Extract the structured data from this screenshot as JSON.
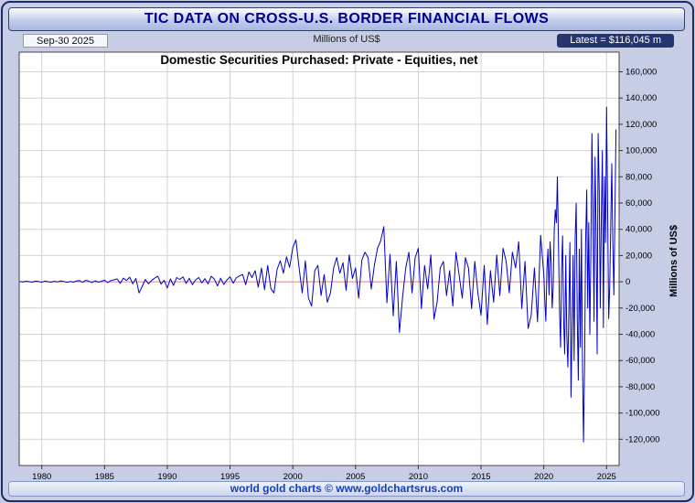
{
  "header": {
    "title": "TIC DATA ON CROSS-U.S. BORDER FINANCIAL FLOWS"
  },
  "info_bar": {
    "date": "Sep-30  2025",
    "units": "Millions of US$",
    "latest": "Latest = $116,045 m"
  },
  "footer": {
    "text": "world gold charts © www.goldchartsrus.com"
  },
  "colors": {
    "background": "#c6cde4",
    "frame_border": "#1b2a6b",
    "title_text": "#00008b",
    "badge_bg": "#25356f",
    "footer_text": "#1b3fae"
  },
  "chart_data": {
    "type": "line",
    "title": "Domestic Securities Purchased: Private - Equities, net",
    "ylabel": "Millions of US$",
    "xlabel": "",
    "grid": true,
    "legend_position": "none",
    "xlim": [
      1978.2,
      2026.0
    ],
    "ylim": [
      -140000,
      175000
    ],
    "xticks": [
      1980,
      1985,
      1990,
      1995,
      2000,
      2005,
      2010,
      2015,
      2020,
      2025
    ],
    "yticks": [
      -120000,
      -100000,
      -80000,
      -60000,
      -40000,
      -20000,
      0,
      20000,
      40000,
      60000,
      80000,
      100000,
      120000,
      140000,
      160000
    ],
    "line_color": "#0000c8",
    "zero_line_color": "#d98080",
    "grid_color": "#d2d2d2",
    "latest_value": 116045,
    "latest_date": "Sep-30 2025",
    "series": [
      {
        "name": "Private Equities net purchases",
        "points": [
          [
            1978.25,
            300
          ],
          [
            1978.5,
            -200
          ],
          [
            1978.75,
            400
          ],
          [
            1979,
            100
          ],
          [
            1979.25,
            -300
          ],
          [
            1979.5,
            500
          ],
          [
            1979.75,
            200
          ],
          [
            1980,
            -400
          ],
          [
            1980.25,
            600
          ],
          [
            1980.5,
            100
          ],
          [
            1980.75,
            -250
          ],
          [
            1981,
            450
          ],
          [
            1981.25,
            -150
          ],
          [
            1981.5,
            700
          ],
          [
            1981.75,
            300
          ],
          [
            1982,
            -500
          ],
          [
            1982.25,
            250
          ],
          [
            1982.5,
            -300
          ],
          [
            1982.75,
            600
          ],
          [
            1983,
            900
          ],
          [
            1983.25,
            -400
          ],
          [
            1983.5,
            1100
          ],
          [
            1983.75,
            500
          ],
          [
            1984,
            -700
          ],
          [
            1984.25,
            800
          ],
          [
            1984.5,
            -300
          ],
          [
            1984.75,
            400
          ],
          [
            1985,
            1200
          ],
          [
            1985.25,
            -600
          ],
          [
            1985.5,
            900
          ],
          [
            1985.75,
            1500
          ],
          [
            1986,
            2200
          ],
          [
            1986.25,
            -1200
          ],
          [
            1986.5,
            2800
          ],
          [
            1986.75,
            1000
          ],
          [
            1987,
            3500
          ],
          [
            1987.25,
            -1500
          ],
          [
            1987.5,
            2500
          ],
          [
            1987.75,
            -8500
          ],
          [
            1988,
            -3500
          ],
          [
            1988.25,
            1800
          ],
          [
            1988.5,
            -1500
          ],
          [
            1988.75,
            1000
          ],
          [
            1989,
            2800
          ],
          [
            1989.25,
            4200
          ],
          [
            1989.5,
            -1800
          ],
          [
            1989.75,
            1200
          ],
          [
            1990,
            -4800
          ],
          [
            1990.25,
            2200
          ],
          [
            1990.5,
            -2800
          ],
          [
            1990.75,
            3200
          ],
          [
            1991,
            1800
          ],
          [
            1991.25,
            3800
          ],
          [
            1991.5,
            -1200
          ],
          [
            1991.75,
            2600
          ],
          [
            1992,
            -2200
          ],
          [
            1992.25,
            1400
          ],
          [
            1992.5,
            3200
          ],
          [
            1992.75,
            -900
          ],
          [
            1993,
            2400
          ],
          [
            1993.25,
            -1600
          ],
          [
            1993.5,
            4200
          ],
          [
            1993.75,
            2000
          ],
          [
            1994,
            -3200
          ],
          [
            1994.25,
            2700
          ],
          [
            1994.5,
            -2000
          ],
          [
            1994.75,
            1400
          ],
          [
            1995,
            3800
          ],
          [
            1995.25,
            -1100
          ],
          [
            1995.5,
            3000
          ],
          [
            1995.75,
            4500
          ],
          [
            1996,
            5500
          ],
          [
            1996.25,
            -2200
          ],
          [
            1996.5,
            7500
          ],
          [
            1996.75,
            3200
          ],
          [
            1997,
            8500
          ],
          [
            1997.25,
            -4200
          ],
          [
            1997.5,
            10500
          ],
          [
            1997.75,
            -6000
          ],
          [
            1998,
            12500
          ],
          [
            1998.25,
            -5200
          ],
          [
            1998.5,
            -8500
          ],
          [
            1998.75,
            9500
          ],
          [
            1999,
            16000
          ],
          [
            1999.25,
            6500
          ],
          [
            1999.5,
            19000
          ],
          [
            1999.75,
            11000
          ],
          [
            2000,
            26000
          ],
          [
            2000.25,
            32000
          ],
          [
            2000.5,
            11000
          ],
          [
            2000.75,
            -8500
          ],
          [
            2001,
            16000
          ],
          [
            2001.25,
            -12500
          ],
          [
            2001.5,
            -18500
          ],
          [
            2001.75,
            8500
          ],
          [
            2002,
            12500
          ],
          [
            2002.25,
            -10500
          ],
          [
            2002.5,
            5500
          ],
          [
            2002.75,
            -15500
          ],
          [
            2003,
            -8500
          ],
          [
            2003.25,
            10500
          ],
          [
            2003.5,
            18500
          ],
          [
            2003.75,
            6500
          ],
          [
            2004,
            14500
          ],
          [
            2004.25,
            -6500
          ],
          [
            2004.5,
            20500
          ],
          [
            2004.75,
            2500
          ],
          [
            2005,
            10500
          ],
          [
            2005.25,
            -12500
          ],
          [
            2005.5,
            16500
          ],
          [
            2005.75,
            22500
          ],
          [
            2006,
            18500
          ],
          [
            2006.25,
            -5500
          ],
          [
            2006.5,
            12500
          ],
          [
            2006.75,
            25500
          ],
          [
            2007,
            31000
          ],
          [
            2007.25,
            42000
          ],
          [
            2007.5,
            -16000
          ],
          [
            2007.75,
            21000
          ],
          [
            2008,
            -26000
          ],
          [
            2008.25,
            15500
          ],
          [
            2008.5,
            -38500
          ],
          [
            2008.75,
            -11000
          ],
          [
            2009,
            10500
          ],
          [
            2009.25,
            22500
          ],
          [
            2009.5,
            -8500
          ],
          [
            2009.75,
            18500
          ],
          [
            2010,
            25500
          ],
          [
            2010.25,
            -20500
          ],
          [
            2010.5,
            12500
          ],
          [
            2010.75,
            -5500
          ],
          [
            2011,
            20500
          ],
          [
            2011.25,
            -28500
          ],
          [
            2011.5,
            -15500
          ],
          [
            2011.75,
            10500
          ],
          [
            2012,
            15500
          ],
          [
            2012.25,
            -10500
          ],
          [
            2012.5,
            8500
          ],
          [
            2012.75,
            -18500
          ],
          [
            2013,
            22500
          ],
          [
            2013.25,
            5500
          ],
          [
            2013.5,
            -12500
          ],
          [
            2013.75,
            18500
          ],
          [
            2014,
            10500
          ],
          [
            2014.25,
            -20500
          ],
          [
            2014.5,
            15500
          ],
          [
            2014.75,
            -8500
          ],
          [
            2015,
            -25500
          ],
          [
            2015.25,
            12500
          ],
          [
            2015.5,
            -32500
          ],
          [
            2015.75,
            8500
          ],
          [
            2016,
            -15500
          ],
          [
            2016.25,
            20500
          ],
          [
            2016.5,
            -10500
          ],
          [
            2016.75,
            25500
          ],
          [
            2017,
            15500
          ],
          [
            2017.25,
            -8500
          ],
          [
            2017.5,
            22500
          ],
          [
            2017.75,
            10500
          ],
          [
            2018,
            30500
          ],
          [
            2018.25,
            -20500
          ],
          [
            2018.5,
            15500
          ],
          [
            2018.75,
            -35500
          ],
          [
            2019,
            -25500
          ],
          [
            2019.25,
            10500
          ],
          [
            2019.5,
            -30500
          ],
          [
            2019.75,
            35500
          ],
          [
            2020,
            5000
          ],
          [
            2020.083,
            -15000
          ],
          [
            2020.167,
            -30000
          ],
          [
            2020.25,
            10000
          ],
          [
            2020.333,
            25000
          ],
          [
            2020.417,
            -10000
          ],
          [
            2020.5,
            30500
          ],
          [
            2020.583,
            15000
          ],
          [
            2020.667,
            -20000
          ],
          [
            2020.75,
            -5000
          ],
          [
            2020.833,
            40000
          ],
          [
            2020.917,
            55000
          ],
          [
            2021,
            45000
          ],
          [
            2021.083,
            80000
          ],
          [
            2021.167,
            30000
          ],
          [
            2021.25,
            -20000
          ],
          [
            2021.333,
            -50000
          ],
          [
            2021.417,
            10000
          ],
          [
            2021.5,
            35000
          ],
          [
            2021.583,
            -30000
          ],
          [
            2021.667,
            -55000
          ],
          [
            2021.75,
            20000
          ],
          [
            2021.833,
            -40000
          ],
          [
            2021.917,
            -65000
          ],
          [
            2022,
            -20000
          ],
          [
            2022.083,
            30000
          ],
          [
            2022.167,
            -88000
          ],
          [
            2022.25,
            -40000
          ],
          [
            2022.333,
            20000
          ],
          [
            2022.417,
            -60000
          ],
          [
            2022.5,
            35000
          ],
          [
            2022.583,
            60000
          ],
          [
            2022.667,
            -30000
          ],
          [
            2022.75,
            -75000
          ],
          [
            2022.833,
            25000
          ],
          [
            2022.917,
            -50000
          ],
          [
            2023,
            40000
          ],
          [
            2023.083,
            -65000
          ],
          [
            2023.167,
            -122000
          ],
          [
            2023.25,
            -60000
          ],
          [
            2023.333,
            30000
          ],
          [
            2023.417,
            70000
          ],
          [
            2023.5,
            -20000
          ],
          [
            2023.583,
            45000
          ],
          [
            2023.667,
            -40000
          ],
          [
            2023.75,
            20000
          ],
          [
            2023.833,
            113000
          ],
          [
            2023.917,
            60000
          ],
          [
            2024,
            -30000
          ],
          [
            2024.083,
            95000
          ],
          [
            2024.167,
            40000
          ],
          [
            2024.25,
            -55000
          ],
          [
            2024.333,
            113000
          ],
          [
            2024.417,
            70000
          ],
          [
            2024.5,
            -20000
          ],
          [
            2024.583,
            50000
          ],
          [
            2024.667,
            100000
          ],
          [
            2024.75,
            -35000
          ],
          [
            2024.833,
            80000
          ],
          [
            2024.917,
            30000
          ],
          [
            2025,
            133000
          ],
          [
            2025.083,
            60000
          ],
          [
            2025.167,
            -28000
          ],
          [
            2025.25,
            -5000
          ],
          [
            2025.333,
            40000
          ],
          [
            2025.417,
            90000
          ],
          [
            2025.5,
            30000
          ],
          [
            2025.583,
            -10000
          ],
          [
            2025.75,
            116045
          ]
        ]
      }
    ]
  }
}
